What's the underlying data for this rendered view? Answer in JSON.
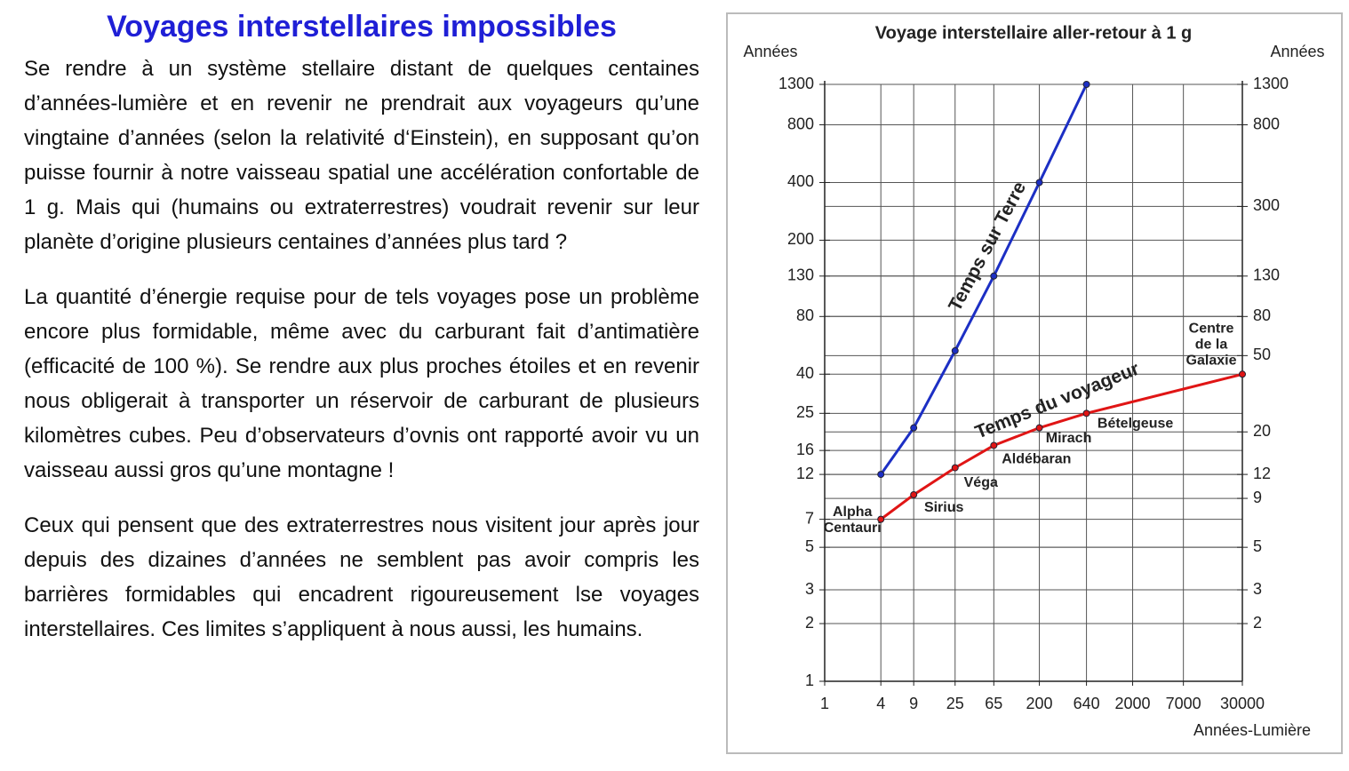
{
  "text": {
    "heading": "Voyages interstellaires impossibles",
    "paragraphs": [
      "Se rendre à un système stellaire distant de quelques centaines d’années-lumière et en revenir ne prendrait aux voyageurs qu’une vingtaine d’années (selon la relativité d‘Einstein), en supposant qu’on puisse fournir à notre vaisseau spatial une accélération confortable de 1 g. Mais qui (humains ou extraterrestres) voudrait revenir sur leur planète d’origine plusieurs centaines d’années plus tard ?",
      "La quantité d’énergie requise pour de tels voyages pose un problème encore plus formidable, même avec du carburant fait d’antimatière (efficacité de 100 %). Se rendre aux plus proches étoiles et en revenir nous obligerait à transporter un réservoir de carburant de plusieurs kilomètres cubes. Peu d’observateurs d’ovnis ont rapporté avoir vu un vaisseau aussi gros qu’une montagne !",
      "Ceux qui pensent que des extraterrestres nous visitent jour après jour depuis des dizaines d’années ne semblent pas avoir compris les barrières formidables qui encadrent rigoureusement lse voyages interstellaires. Ces limites s’appliquent à nous aussi, les humains."
    ]
  },
  "chart_data": {
    "type": "line",
    "title": "Voyage interstellaire aller-retour à 1 g",
    "y_label": "Années",
    "y2_label": "Années",
    "x_label": "Années-Lumière",
    "x": [
      4,
      9,
      25,
      65,
      200,
      640,
      30000
    ],
    "series": [
      {
        "name": "Temps sur Terre",
        "color": "#1c2fc4",
        "values": [
          12,
          21,
          53,
          130,
          400,
          1300,
          null
        ]
      },
      {
        "name": "Temps du voyageur",
        "color": "#e01515",
        "values": [
          7,
          9.4,
          13,
          17,
          21,
          25,
          40
        ]
      }
    ],
    "annotations": [
      {
        "lines": [
          "Alpha",
          "Centauri"
        ]
      },
      {
        "lines": [
          "Sirius"
        ]
      },
      {
        "lines": [
          "Véga"
        ]
      },
      {
        "lines": [
          "Aldébaran"
        ]
      },
      {
        "lines": [
          "Mirach"
        ]
      },
      {
        "lines": [
          "Bételgeuse"
        ]
      },
      {
        "lines": [
          "Centre",
          "de la",
          "Galaxie"
        ]
      }
    ],
    "log_x": true,
    "log_y": true,
    "grid": true,
    "xlim": [
      1,
      30000
    ],
    "xticks": [
      1,
      4,
      9,
      25,
      65,
      200,
      640,
      2000,
      7000,
      30000
    ],
    "ylim": [
      1,
      1300
    ],
    "yticks": [
      1,
      2,
      3,
      5,
      7,
      12,
      16,
      25,
      40,
      80,
      130,
      200,
      400,
      800,
      1300
    ],
    "y2lim": [
      1,
      1300
    ],
    "y2ticks": [
      2,
      3,
      5,
      9,
      12,
      20,
      50,
      80,
      130,
      300,
      800,
      1300
    ]
  }
}
